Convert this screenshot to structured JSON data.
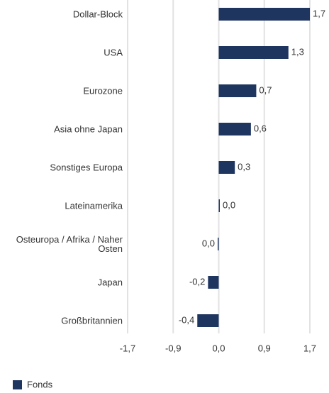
{
  "chart_data": {
    "type": "bar",
    "orientation": "horizontal",
    "categories": [
      "Dollar-Block",
      "USA",
      "Eurozone",
      "Asia ohne Japan",
      "Sonstiges Europa",
      "Lateinamerika",
      "Osteuropa / Afrika / Naher Osten",
      "Japan",
      "Großbritannien"
    ],
    "series": [
      {
        "name": "Fonds",
        "color": "#1e3560",
        "values": [
          1.7,
          1.3,
          0.7,
          0.6,
          0.3,
          0.01,
          -0.01,
          -0.2,
          -0.4
        ],
        "value_labels": [
          "1,7",
          "1,3",
          "0,7",
          "0,6",
          "0,3",
          "0,0",
          "0,0",
          "-0,2",
          "-0,4"
        ]
      }
    ],
    "xlim": [
      -1.7,
      1.7
    ],
    "xticks": [
      {
        "value": -1.7,
        "label": "-1,7"
      },
      {
        "value": -0.85,
        "label": "-0,9"
      },
      {
        "value": 0,
        "label": "0,0"
      },
      {
        "value": 0.85,
        "label": "0,9"
      },
      {
        "value": 1.7,
        "label": "1,7"
      }
    ],
    "grid": true,
    "legend": "bottom-left"
  }
}
